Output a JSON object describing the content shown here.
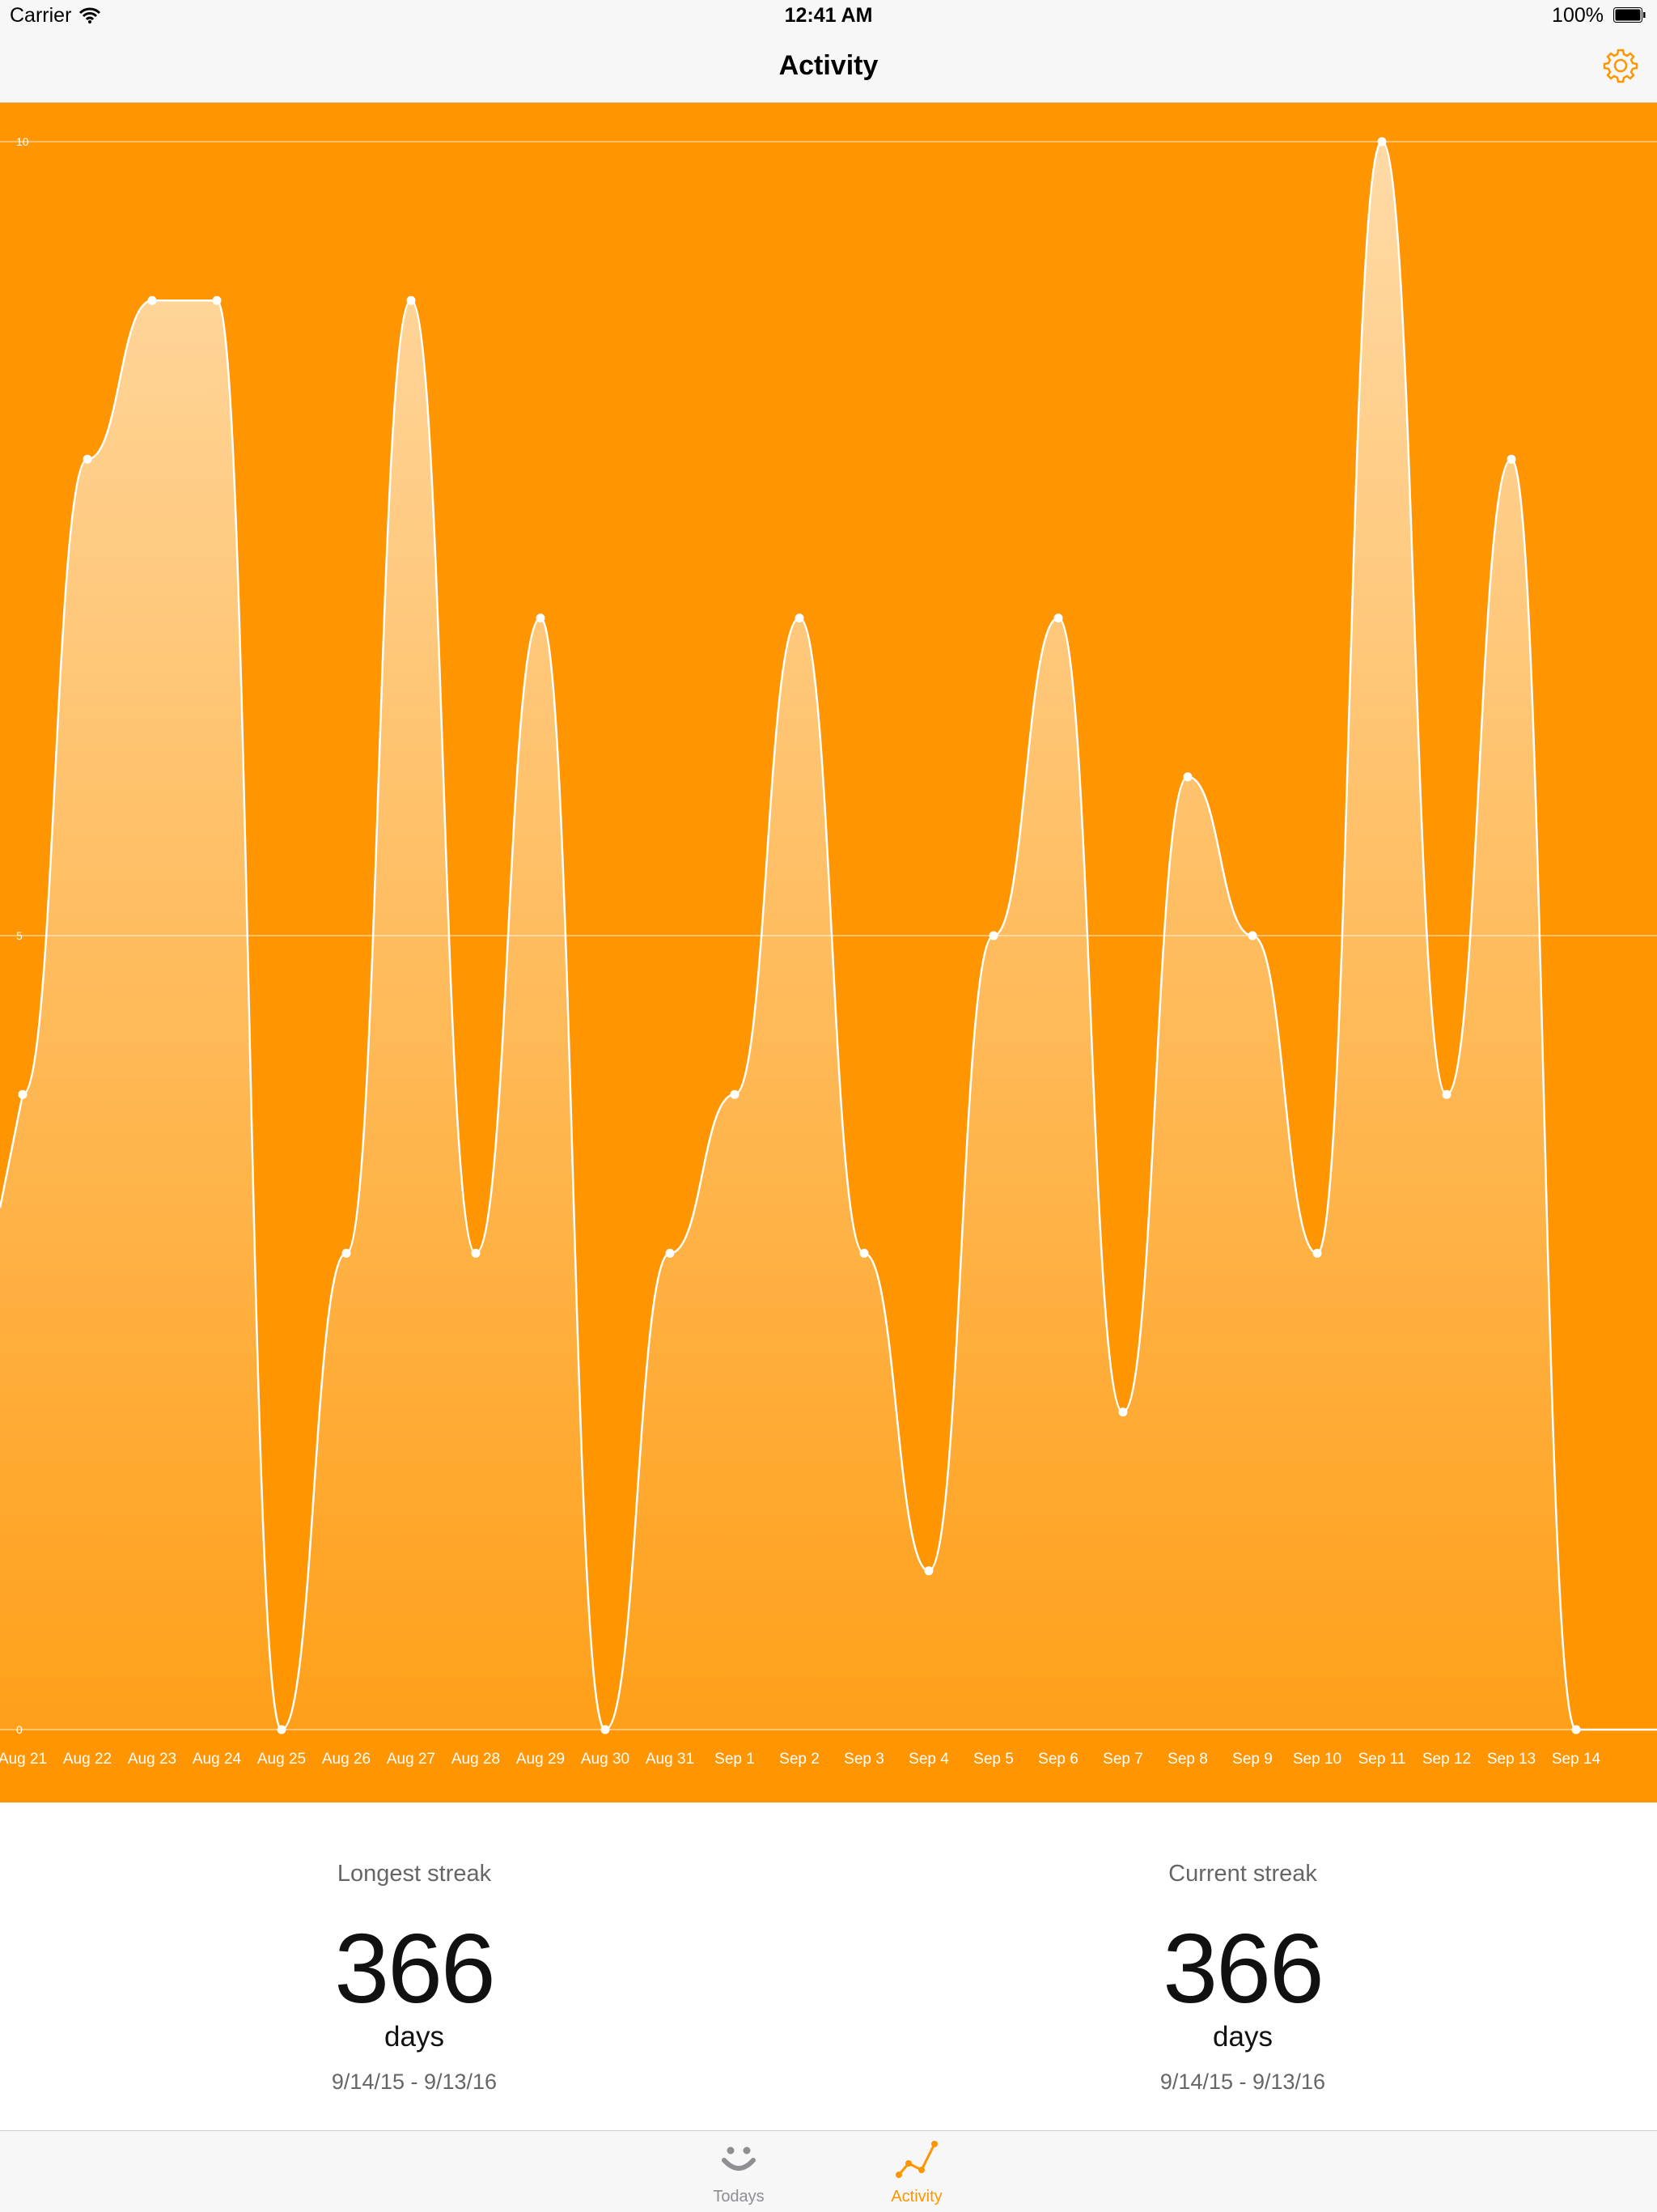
{
  "status_bar": {
    "carrier": "Carrier",
    "time": "12:41 AM",
    "battery": "100%"
  },
  "nav": {
    "title": "Activity",
    "settings_icon": "gear-icon"
  },
  "colors": {
    "accent": "#ff9500",
    "chart_bg": "#ff9500",
    "line": "#ffffff",
    "tab_inactive": "#8e8e93"
  },
  "chart_data": {
    "type": "area",
    "categories": [
      "Aug 21",
      "Aug 22",
      "Aug 23",
      "Aug 24",
      "Aug 25",
      "Aug 26",
      "Aug 27",
      "Aug 28",
      "Aug 29",
      "Aug 30",
      "Aug 31",
      "Sep 1",
      "Sep 2",
      "Sep 3",
      "Sep 4",
      "Sep 5",
      "Sep 6",
      "Sep 7",
      "Sep 8",
      "Sep 9",
      "Sep 10",
      "Sep 11",
      "Sep 12",
      "Sep 13",
      "Sep 14"
    ],
    "values": [
      4,
      8,
      9,
      9,
      0,
      3,
      9,
      3,
      7,
      0,
      3,
      4,
      7,
      3,
      1,
      5,
      7,
      2,
      6,
      5,
      3,
      10,
      4,
      8,
      0
    ],
    "ylim": [
      0,
      10
    ],
    "yticks": [
      0,
      5,
      10
    ],
    "ytick_labels": [
      "0",
      "5",
      "10"
    ],
    "smooth": true,
    "grid": true,
    "title": "",
    "xlabel": "",
    "ylabel": ""
  },
  "stats": {
    "longest": {
      "label": "Longest streak",
      "value": "366",
      "unit": "days",
      "range": "9/14/15 - 9/13/16"
    },
    "current": {
      "label": "Current streak",
      "value": "366",
      "unit": "days",
      "range": "9/14/15 - 9/13/16"
    }
  },
  "tabs": [
    {
      "label": "Todays",
      "icon": "smiley-icon",
      "selected": false
    },
    {
      "label": "Activity",
      "icon": "line-chart-icon",
      "selected": true
    }
  ]
}
